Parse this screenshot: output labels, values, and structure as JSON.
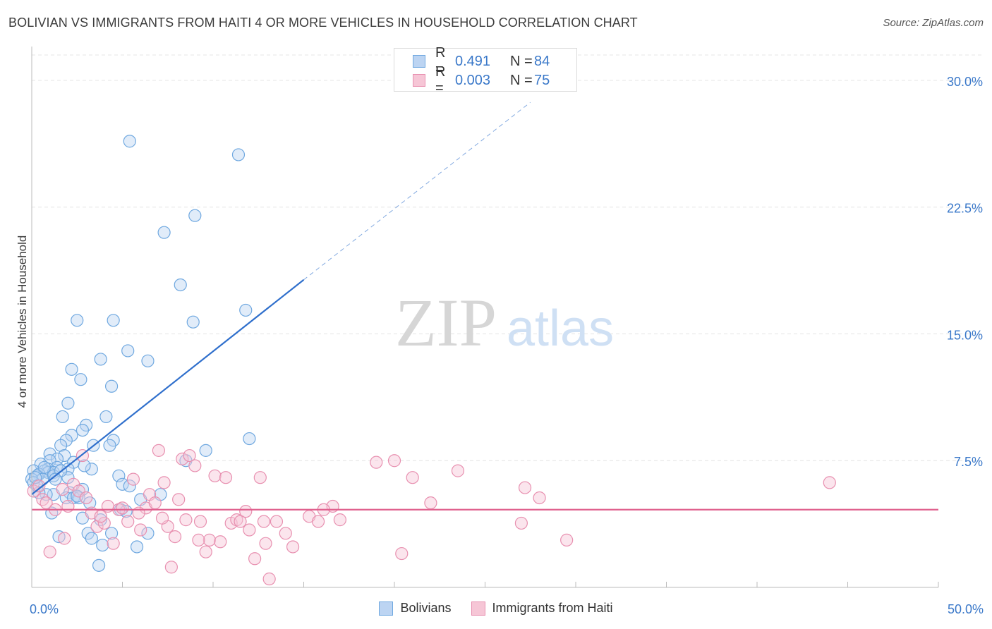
{
  "title": "BOLIVIAN VS IMMIGRANTS FROM HAITI 4 OR MORE VEHICLES IN HOUSEHOLD CORRELATION CHART",
  "source": "Source: ZipAtlas.com",
  "watermark": {
    "zip": "ZIP",
    "atlas": "atlas"
  },
  "colors": {
    "bolivians": "#6fa8e0",
    "bolivians_fill": "#bcd4f2",
    "bolivians_line": "#2f6fcc",
    "haiti": "#e890b0",
    "haiti_fill": "#f6c6d6",
    "haiti_line": "#e0608e",
    "grid": "#e4e4e4",
    "axis_text": "#3a78c9"
  },
  "legend_top": {
    "rows": [
      {
        "series": "bolivians",
        "r_label": "R =",
        "r_value": "0.491",
        "n_label": "N =",
        "n_value": "84"
      },
      {
        "series": "haiti",
        "r_label": "R =",
        "r_value": "0.003",
        "n_label": "N =",
        "n_value": "75"
      }
    ]
  },
  "legend_bottom": {
    "bolivians": "Bolivians",
    "haiti": "Immigrants from Haiti"
  },
  "chart_data": {
    "type": "scatter",
    "title": "BOLIVIAN VS IMMIGRANTS FROM HAITI 4 OR MORE VEHICLES IN HOUSEHOLD CORRELATION CHART",
    "xlabel": "",
    "ylabel": "4 or more Vehicles in Household",
    "xlim": [
      0,
      50
    ],
    "ylim": [
      0,
      31.5
    ],
    "x_tick_labels": [
      {
        "value": 0,
        "label": "0.0%"
      },
      {
        "value": 50,
        "label": "50.0%"
      }
    ],
    "y_tick_labels": [
      {
        "value": 7.5,
        "label": "7.5%"
      },
      {
        "value": 15,
        "label": "15.0%"
      },
      {
        "value": 22.5,
        "label": "22.5%"
      },
      {
        "value": 30,
        "label": "30.0%"
      }
    ],
    "grid": true,
    "series": [
      {
        "name": "Bolivians",
        "key": "bolivians",
        "R": 0.491,
        "N": 84,
        "trend": {
          "x": [
            0,
            15
          ],
          "y": [
            5.5,
            18.2
          ],
          "dashed_to": {
            "x": 27.5,
            "y": 28.7
          }
        },
        "points": [
          [
            5.4,
            26.4
          ],
          [
            11.4,
            25.6
          ],
          [
            9.0,
            22.0
          ],
          [
            7.3,
            21.0
          ],
          [
            8.2,
            17.9
          ],
          [
            11.8,
            16.4
          ],
          [
            2.5,
            15.8
          ],
          [
            4.5,
            15.8
          ],
          [
            8.9,
            15.7
          ],
          [
            5.3,
            14.0
          ],
          [
            3.8,
            13.5
          ],
          [
            6.4,
            13.4
          ],
          [
            2.2,
            12.9
          ],
          [
            2.7,
            12.3
          ],
          [
            4.4,
            11.9
          ],
          [
            2.0,
            10.9
          ],
          [
            1.7,
            10.1
          ],
          [
            4.1,
            10.1
          ],
          [
            3.0,
            9.6
          ],
          [
            2.8,
            9.3
          ],
          [
            2.2,
            9.0
          ],
          [
            12.0,
            8.8
          ],
          [
            1.9,
            8.7
          ],
          [
            4.5,
            8.7
          ],
          [
            1.6,
            8.4
          ],
          [
            3.4,
            8.4
          ],
          [
            4.3,
            8.4
          ],
          [
            9.6,
            8.1
          ],
          [
            1.0,
            7.9
          ],
          [
            1.8,
            7.8
          ],
          [
            1.4,
            7.6
          ],
          [
            1.0,
            7.5
          ],
          [
            2.3,
            7.4
          ],
          [
            8.5,
            7.5
          ],
          [
            0.5,
            7.3
          ],
          [
            1.4,
            7.1
          ],
          [
            0.9,
            7.0
          ],
          [
            2.0,
            7.0
          ],
          [
            0.1,
            6.9
          ],
          [
            0.7,
            6.9
          ],
          [
            0.9,
            6.8
          ],
          [
            1.2,
            6.8
          ],
          [
            3.3,
            7.0
          ],
          [
            0.4,
            6.7
          ],
          [
            0.3,
            6.6
          ],
          [
            1.2,
            6.6
          ],
          [
            2.0,
            6.5
          ],
          [
            4.8,
            6.6
          ],
          [
            0.0,
            6.4
          ],
          [
            0.6,
            6.4
          ],
          [
            0.1,
            6.2
          ],
          [
            0.3,
            6.0
          ],
          [
            5.0,
            6.1
          ],
          [
            5.4,
            6.0
          ],
          [
            2.8,
            5.8
          ],
          [
            2.1,
            5.6
          ],
          [
            1.2,
            5.5
          ],
          [
            0.8,
            5.5
          ],
          [
            1.9,
            5.3
          ],
          [
            2.3,
            5.3
          ],
          [
            2.6,
            5.3
          ],
          [
            7.1,
            5.5
          ],
          [
            6.0,
            5.2
          ],
          [
            3.2,
            5.0
          ],
          [
            1.1,
            4.4
          ],
          [
            4.9,
            4.6
          ],
          [
            5.2,
            4.5
          ],
          [
            3.8,
            4.0
          ],
          [
            2.8,
            4.1
          ],
          [
            3.1,
            3.2
          ],
          [
            4.4,
            3.2
          ],
          [
            6.4,
            3.2
          ],
          [
            1.5,
            3.0
          ],
          [
            3.3,
            2.9
          ],
          [
            3.9,
            2.5
          ],
          [
            5.8,
            2.4
          ],
          [
            3.7,
            1.3
          ],
          [
            0.2,
            6.5
          ],
          [
            1.6,
            6.9
          ],
          [
            0.7,
            7.1
          ],
          [
            2.9,
            7.2
          ],
          [
            1.3,
            6.4
          ],
          [
            0.4,
            5.6
          ],
          [
            2.5,
            5.4
          ]
        ]
      },
      {
        "name": "Immigrants from Haiti",
        "key": "haiti",
        "R": 0.003,
        "N": 75,
        "trend": {
          "x": [
            0,
            50
          ],
          "y": [
            4.6,
            4.6
          ]
        },
        "points": [
          [
            0.1,
            5.7
          ],
          [
            0.4,
            6.0
          ],
          [
            0.6,
            5.2
          ],
          [
            0.8,
            5.0
          ],
          [
            1.0,
            2.1
          ],
          [
            1.3,
            4.6
          ],
          [
            1.7,
            5.8
          ],
          [
            2.0,
            4.8
          ],
          [
            2.3,
            6.1
          ],
          [
            2.6,
            5.7
          ],
          [
            2.8,
            7.8
          ],
          [
            3.0,
            5.3
          ],
          [
            3.3,
            4.4
          ],
          [
            3.6,
            3.6
          ],
          [
            4.0,
            3.8
          ],
          [
            4.2,
            4.8
          ],
          [
            4.5,
            2.6
          ],
          [
            4.8,
            4.6
          ],
          [
            5.0,
            4.7
          ],
          [
            5.3,
            3.9
          ],
          [
            5.6,
            6.4
          ],
          [
            6.0,
            3.4
          ],
          [
            6.3,
            4.7
          ],
          [
            6.5,
            5.5
          ],
          [
            6.8,
            5.0
          ],
          [
            7.0,
            8.1
          ],
          [
            7.3,
            6.2
          ],
          [
            7.5,
            3.6
          ],
          [
            7.7,
            1.2
          ],
          [
            7.9,
            3.0
          ],
          [
            8.1,
            5.2
          ],
          [
            8.3,
            7.6
          ],
          [
            8.5,
            4.0
          ],
          [
            8.7,
            7.8
          ],
          [
            9.0,
            7.2
          ],
          [
            9.3,
            3.9
          ],
          [
            9.6,
            2.1
          ],
          [
            9.8,
            2.8
          ],
          [
            10.1,
            6.6
          ],
          [
            10.4,
            2.7
          ],
          [
            10.7,
            6.5
          ],
          [
            11.0,
            3.8
          ],
          [
            11.3,
            4.0
          ],
          [
            11.5,
            3.9
          ],
          [
            11.8,
            4.5
          ],
          [
            12.0,
            3.4
          ],
          [
            12.3,
            1.7
          ],
          [
            12.6,
            6.5
          ],
          [
            12.8,
            3.9
          ],
          [
            13.1,
            0.5
          ],
          [
            13.5,
            3.9
          ],
          [
            14.0,
            3.2
          ],
          [
            14.4,
            2.4
          ],
          [
            15.3,
            4.2
          ],
          [
            15.8,
            3.9
          ],
          [
            16.6,
            4.8
          ],
          [
            17.0,
            4.0
          ],
          [
            19.0,
            7.4
          ],
          [
            20.0,
            7.5
          ],
          [
            20.4,
            2.0
          ],
          [
            21.0,
            6.5
          ],
          [
            22.0,
            5.0
          ],
          [
            23.5,
            6.9
          ],
          [
            27.0,
            3.8
          ],
          [
            27.2,
            5.9
          ],
          [
            28.0,
            5.3
          ],
          [
            29.5,
            2.8
          ],
          [
            44.0,
            6.2
          ],
          [
            1.8,
            2.9
          ],
          [
            3.8,
            4.2
          ],
          [
            5.9,
            4.4
          ],
          [
            7.2,
            4.1
          ],
          [
            9.2,
            2.8
          ],
          [
            12.9,
            2.6
          ],
          [
            16.1,
            4.6
          ]
        ]
      }
    ]
  }
}
